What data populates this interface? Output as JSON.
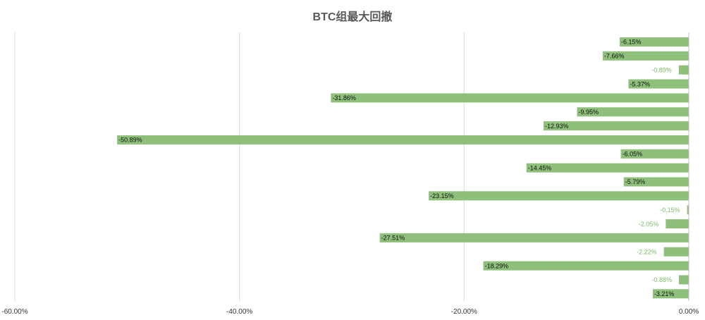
{
  "chart_data": {
    "type": "bar",
    "orientation": "horizontal",
    "title": "BTC组最大回撤",
    "xlabel": "",
    "ylabel": "",
    "xlim": [
      -60,
      0
    ],
    "x_ticks": [
      "-60.00%",
      "-40.00%",
      "-20.00%",
      "0.00%"
    ],
    "x_tick_values": [
      -60,
      -40,
      -20,
      0
    ],
    "grid": "vertical",
    "legend": "none",
    "bar_color": "#8ec07b",
    "label_color_inside": "#111111",
    "label_color_outside": "#7dbb6a",
    "values": [
      -6.15,
      -7.66,
      -0.89,
      -5.37,
      -31.86,
      -9.95,
      -12.93,
      -50.89,
      -6.05,
      -14.45,
      -5.79,
      -23.15,
      -0.15,
      -2.05,
      -27.51,
      -2.22,
      -18.29,
      -0.88,
      -3.21
    ],
    "labels": [
      "-6.15%",
      "-7.66%",
      "-0.89%",
      "-5.37%",
      "-31.86%",
      "-9.95%",
      "-12.93%",
      "-50.89%",
      "-6.05%",
      "-14.45%",
      "-5.79%",
      "-23.15%",
      "-0.15%",
      "-2.05%",
      "-27.51%",
      "-2.22%",
      "-18.29%",
      "-0.88%",
      "-3.21%"
    ]
  }
}
